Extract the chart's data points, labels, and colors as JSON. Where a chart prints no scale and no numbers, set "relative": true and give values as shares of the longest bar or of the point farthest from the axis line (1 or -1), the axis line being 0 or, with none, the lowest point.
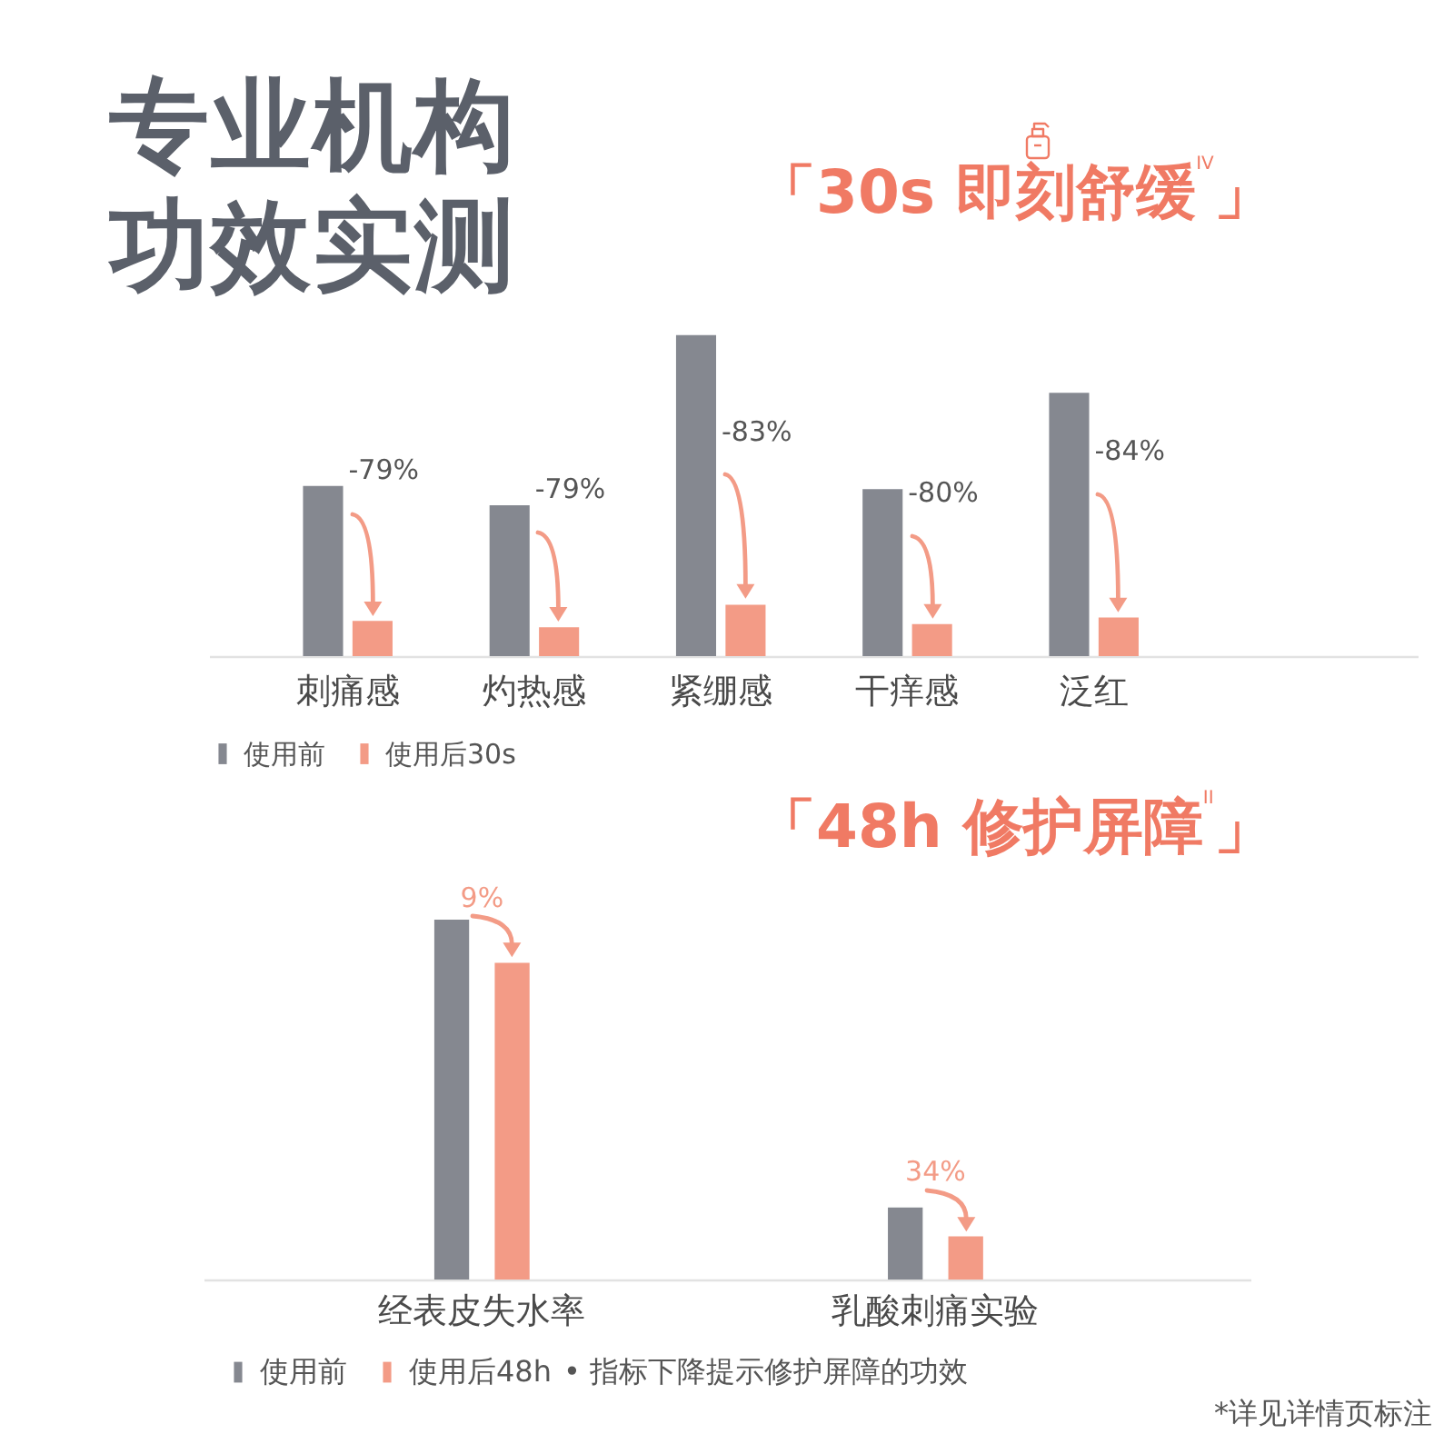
{
  "chart_data": [
    {
      "type": "bar",
      "title": "专业机构功效实测",
      "subtitle": "「30s 即刻舒缓$^{IV}$」",
      "categories": [
        "刺痛感",
        "灼热感",
        "紧绷感",
        "干痒感",
        "泛红"
      ],
      "relative": true,
      "series": [
        {
          "name": "使用前",
          "color": "#858890",
          "values": [
            0.53,
            0.47,
            1,
            0.52,
            0.82
          ]
        },
        {
          "name": "使用后30s",
          "color": "#f39b86",
          "values": [
            0.11,
            0.09,
            0.16,
            0.1,
            0.12
          ]
        }
      ],
      "annotations": [
        "-79%",
        "-79%",
        "-83%",
        "-80%",
        "-84%"
      ],
      "legend": "bottom left"
    },
    {
      "type": "bar",
      "title": "「48h 修护屏障$^{II}$」",
      "categories": [
        "经表皮失水率",
        "乳酸刺痛实验"
      ],
      "relative": true,
      "series": [
        {
          "name": "使用前",
          "color": "#858890",
          "values": [
            1,
            0.2
          ]
        },
        {
          "name": "使用后48h",
          "color": "#f39b86",
          "values": [
            0.88,
            0.12
          ]
        }
      ],
      "annotations": [
        "9%",
        "34%",
        "• 指标下降提示修护屏障的功效",
        "*详见详情页标注"
      ],
      "legend": "bottom left"
    }
  ]
}
